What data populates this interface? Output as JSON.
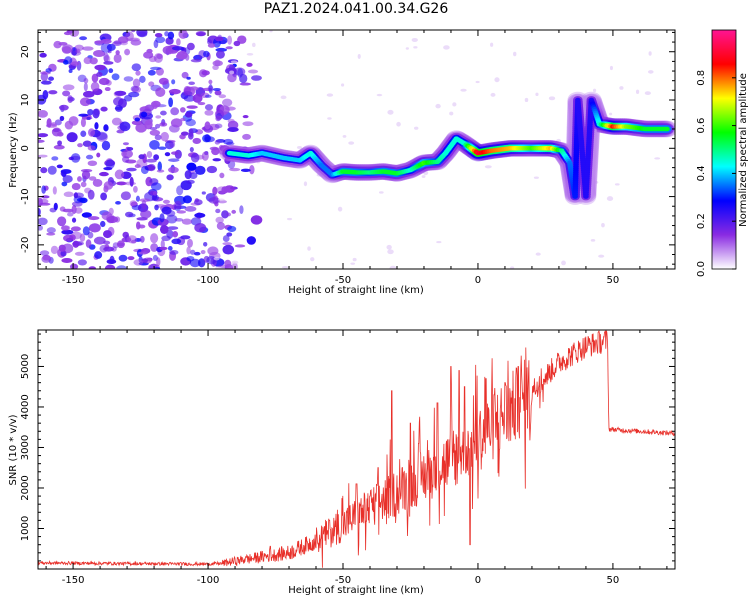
{
  "chart_data": [
    {
      "type": "heatmap",
      "title": "PAZ1.2024.041.00.34.G26",
      "xlabel": "Height of straight line (km)",
      "ylabel": "Frequency (Hz)",
      "xlim": [
        -163,
        73
      ],
      "ylim": [
        -25,
        24.5
      ],
      "xticks": [
        -150,
        -100,
        -50,
        0,
        50
      ],
      "yticks": [
        -20,
        -10,
        0,
        10,
        20
      ],
      "noise_region_x": [
        -163,
        -90
      ],
      "ridge": {
        "description_points": [
          {
            "x": -92,
            "y": -1.0,
            "amp": 0.45
          },
          {
            "x": -85,
            "y": -1.5,
            "amp": 0.45
          },
          {
            "x": -80,
            "y": -1.0,
            "amp": 0.4
          },
          {
            "x": -72,
            "y": -2.0,
            "amp": 0.4
          },
          {
            "x": -66,
            "y": -2.5,
            "amp": 0.4
          },
          {
            "x": -62,
            "y": -1.0,
            "amp": 0.45
          },
          {
            "x": -58,
            "y": -3.5,
            "amp": 0.35
          },
          {
            "x": -54,
            "y": -5.5,
            "amp": 0.35
          },
          {
            "x": -50,
            "y": -4.8,
            "amp": 0.55
          },
          {
            "x": -45,
            "y": -5.0,
            "amp": 0.55
          },
          {
            "x": -40,
            "y": -5.0,
            "amp": 0.5
          },
          {
            "x": -35,
            "y": -4.8,
            "amp": 0.55
          },
          {
            "x": -30,
            "y": -5.2,
            "amp": 0.55
          },
          {
            "x": -25,
            "y": -4.5,
            "amp": 0.45
          },
          {
            "x": -20,
            "y": -3.0,
            "amp": 0.6
          },
          {
            "x": -15,
            "y": -2.8,
            "amp": 0.5
          },
          {
            "x": -12,
            "y": -1.0,
            "amp": 0.45
          },
          {
            "x": -8,
            "y": 2.0,
            "amp": 0.45
          },
          {
            "x": -5,
            "y": 1.0,
            "amp": 0.45
          },
          {
            "x": 0,
            "y": -1.0,
            "amp": 0.9
          },
          {
            "x": 5,
            "y": -0.5,
            "amp": 0.8
          },
          {
            "x": 12,
            "y": 0.0,
            "amp": 0.75
          },
          {
            "x": 20,
            "y": 0.0,
            "amp": 0.6
          },
          {
            "x": 27,
            "y": 0.0,
            "amp": 0.75
          },
          {
            "x": 31,
            "y": -0.5,
            "amp": 0.5
          },
          {
            "x": 34,
            "y": -3.0,
            "amp": 0.35
          },
          {
            "x": 36,
            "y": -10.0,
            "amp": 0.3
          },
          {
            "x": 37,
            "y": 10.0,
            "amp": 0.25
          },
          {
            "x": 40,
            "y": -10.0,
            "amp": 0.25
          },
          {
            "x": 42,
            "y": 10.0,
            "amp": 0.25
          },
          {
            "x": 45,
            "y": 5.0,
            "amp": 0.45
          },
          {
            "x": 50,
            "y": 4.5,
            "amp": 0.85
          },
          {
            "x": 55,
            "y": 4.5,
            "amp": 0.65
          },
          {
            "x": 62,
            "y": 4.0,
            "amp": 0.55
          },
          {
            "x": 70,
            "y": 4.0,
            "amp": 0.55
          }
        ]
      },
      "colorbar": {
        "label": "Normalized spectral amplitude",
        "range": [
          0,
          1
        ],
        "ticks": [
          0.0,
          0.2,
          0.4,
          0.6,
          0.8
        ],
        "tick_labels": [
          "0.0",
          "0.2",
          "0.4",
          "0.6",
          "0.8"
        ],
        "colors": [
          "#ffffff",
          "#8a2be2",
          "#0000ff",
          "#00ffff",
          "#00ff00",
          "#ffff00",
          "#ff0000",
          "#ff1493"
        ]
      }
    },
    {
      "type": "line",
      "xlabel": "Height of straight line (km)",
      "ylabel": "SNR (10 * v/v)",
      "xlim": [
        -163,
        73
      ],
      "ylim": [
        0,
        5900
      ],
      "xticks": [
        -150,
        -100,
        -50,
        0,
        50
      ],
      "yticks": [
        1000,
        2000,
        3000,
        4000,
        5000
      ],
      "color": "#e8302a",
      "trend": [
        {
          "x": -163,
          "y": 150
        },
        {
          "x": -100,
          "y": 120
        },
        {
          "x": -95,
          "y": 140
        },
        {
          "x": -80,
          "y": 300
        },
        {
          "x": -70,
          "y": 400
        },
        {
          "x": -60,
          "y": 700
        },
        {
          "x": -50,
          "y": 1100
        },
        {
          "x": -40,
          "y": 1500
        },
        {
          "x": -30,
          "y": 1900
        },
        {
          "x": -20,
          "y": 2300
        },
        {
          "x": -10,
          "y": 2700
        },
        {
          "x": 0,
          "y": 3200
        },
        {
          "x": 10,
          "y": 3800
        },
        {
          "x": 20,
          "y": 4400
        },
        {
          "x": 30,
          "y": 5100
        },
        {
          "x": 40,
          "y": 5500
        },
        {
          "x": 48,
          "y": 5650
        },
        {
          "x": 48.5,
          "y": 3450
        },
        {
          "x": 60,
          "y": 3400
        },
        {
          "x": 73,
          "y": 3350
        }
      ],
      "spikes": [
        {
          "x": -86,
          "y": 300
        },
        {
          "x": -77,
          "y": 560
        },
        {
          "x": -55,
          "y": 1200
        },
        {
          "x": -45,
          "y": 2100
        },
        {
          "x": -40,
          "y": 1800
        },
        {
          "x": -37,
          "y": 2500
        },
        {
          "x": -32,
          "y": 4400
        },
        {
          "x": -25,
          "y": 3600
        },
        {
          "x": -22,
          "y": 3100
        },
        {
          "x": -15,
          "y": 4100
        },
        {
          "x": -10,
          "y": 5000
        },
        {
          "x": -7,
          "y": 4900
        },
        {
          "x": -5,
          "y": 4500
        },
        {
          "x": 3,
          "y": 4700
        },
        {
          "x": 6,
          "y": 4300
        },
        {
          "x": -3,
          "y": 600
        },
        {
          "x": 10,
          "y": 4600
        },
        {
          "x": 15,
          "y": 5000
        },
        {
          "x": 47,
          "y": 5850
        }
      ]
    }
  ]
}
